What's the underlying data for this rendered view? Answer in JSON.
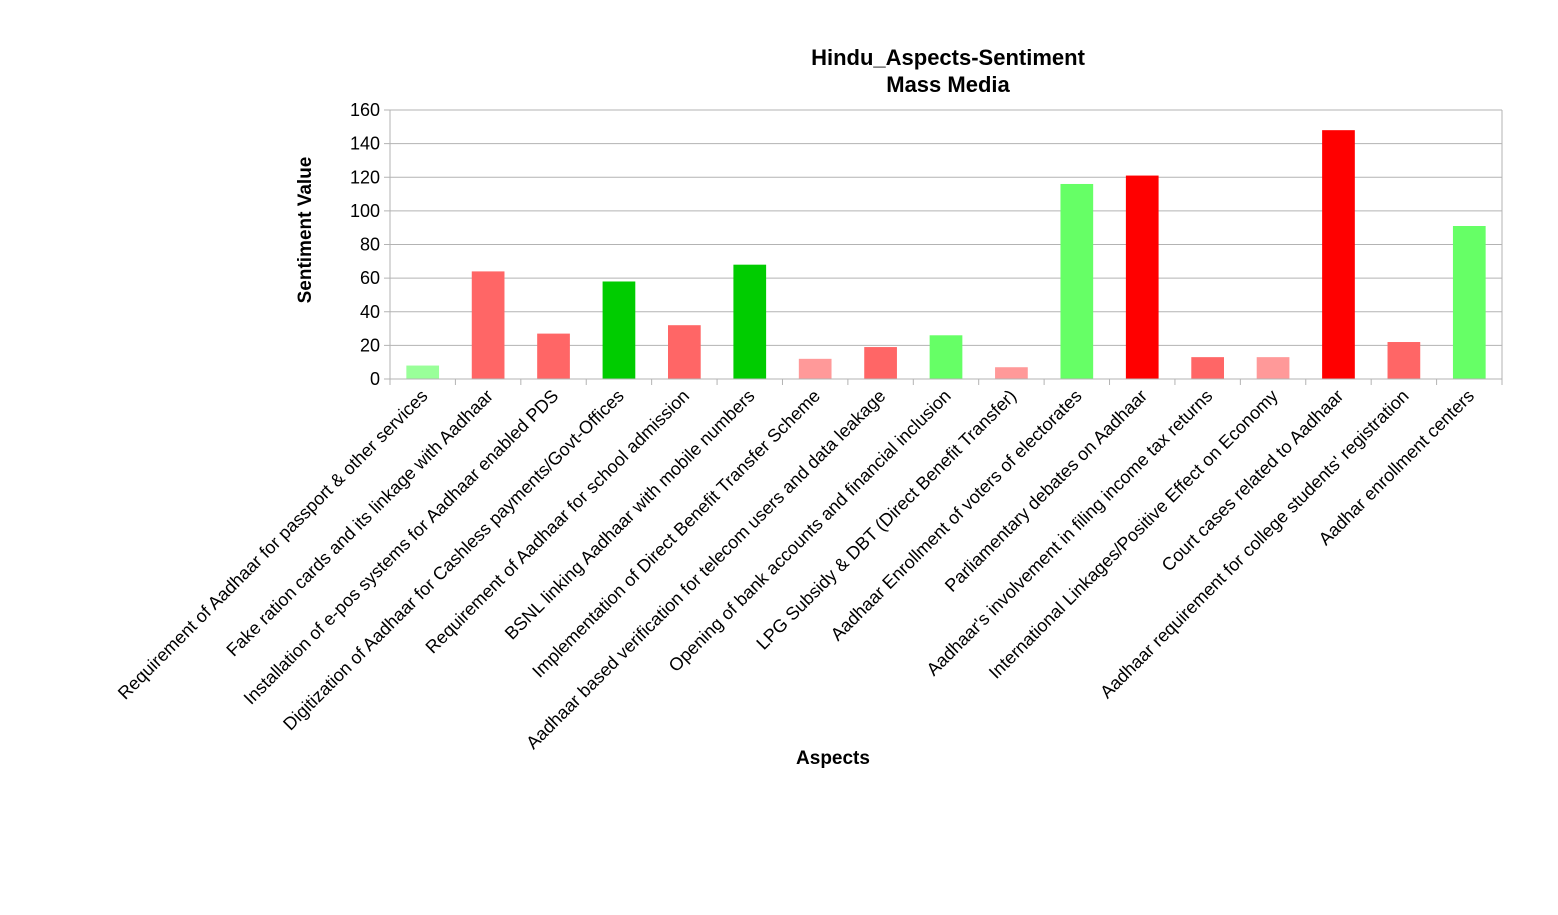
{
  "chart_data": {
    "type": "bar",
    "title": "Hindu_Aspects-Sentiment",
    "subtitle": "Mass Media",
    "xlabel": "Aspects",
    "ylabel": "Sentiment Value",
    "ylim": [
      0,
      160
    ],
    "yticks": [
      0,
      20,
      40,
      60,
      80,
      100,
      120,
      140,
      160
    ],
    "grid": true,
    "legend": "none",
    "categories": [
      "Requirement of Aadhaar for passport & other services",
      "Fake ration cards and its linkage with Aadhaar",
      "Installation of e-pos systems for Aadhaar enabled PDS",
      "Digitization of Aadhaar for Cashless payments/Govt-Offices",
      "Requirement of Aadhaar for school admission",
      "BSNL linking Aadhaar with mobile numbers",
      "Implementation of Direct Benefit Transfer Scheme",
      "Aadhaar based verification for telecom users and data leakage",
      "Opening of bank accounts and financial inclusion",
      "LPG Subsidy & DBT (Direct Benefit Transfer)",
      "Aadhaar Enrollment of voters of electorates",
      "Parliamentary debates on Aadhaar",
      "Aadhaar's involvement in filing income tax returns",
      "International Linkages/Positive Effect on Economy",
      "Court cases related to Aadhaar",
      "Aadhaar requirement for college students' registration",
      "Aadhar enrollment centers"
    ],
    "values": [
      8,
      64,
      27,
      58,
      32,
      68,
      12,
      19,
      26,
      7,
      116,
      121,
      13,
      13,
      148,
      22,
      91
    ],
    "colors": [
      "#99ff99",
      "#ff6666",
      "#ff6666",
      "#00cc00",
      "#ff6666",
      "#00cc00",
      "#ff9999",
      "#ff6666",
      "#66ff66",
      "#ff9999",
      "#66ff66",
      "#ff0000",
      "#ff6666",
      "#ff9999",
      "#ff0000",
      "#ff6666",
      "#66ff66"
    ],
    "gridColor": "#b3b3b3",
    "axisColor": "#b3b3b3"
  }
}
